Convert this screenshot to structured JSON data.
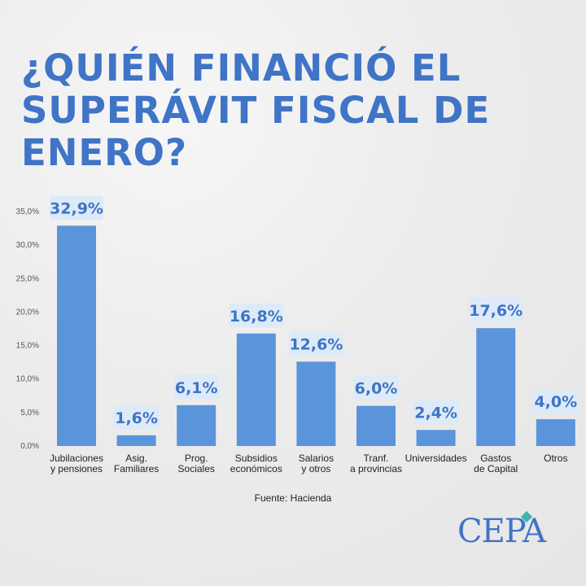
{
  "title": "¿QUIÉN FINANCIÓ EL SUPERÁVIT FISCAL DE ENERO?",
  "source": "Fuente: Hacienda",
  "logo_text": "CEPA",
  "colors": {
    "title": "#3f74c6",
    "bar": "#5a95dc",
    "label_bg": "#ddeaf8",
    "label_text": "#3f74c6"
  },
  "chart_data": {
    "type": "bar",
    "categories": [
      [
        "Jubilaciones",
        "y pensiones"
      ],
      [
        "Asig.",
        "Familiares"
      ],
      [
        "Prog.",
        "Sociales"
      ],
      [
        "Subsidios",
        "económicos"
      ],
      [
        "Salarios",
        "y otros"
      ],
      [
        "Tranf.",
        "a provincias"
      ],
      [
        "Universidades"
      ],
      [
        "Gastos",
        "de Capital"
      ],
      [
        "Otros"
      ]
    ],
    "values": [
      32.9,
      1.6,
      6.1,
      16.8,
      12.6,
      6.0,
      2.4,
      17.6,
      4.0
    ],
    "data_labels": [
      "32,9%",
      "1,6%",
      "6,1%",
      "16,8%",
      "12,6%",
      "6,0%",
      "2,4%",
      "17,6%",
      "4,0%"
    ],
    "yticks": [
      0,
      5,
      10,
      15,
      20,
      25,
      30,
      35
    ],
    "ytick_labels": [
      "0,0%",
      "5,0%",
      "10,0%",
      "15,0%",
      "20,0%",
      "25,0%",
      "30,0%",
      "35,0%"
    ],
    "ylim": [
      0,
      35
    ],
    "grid": false,
    "legend": "none"
  }
}
